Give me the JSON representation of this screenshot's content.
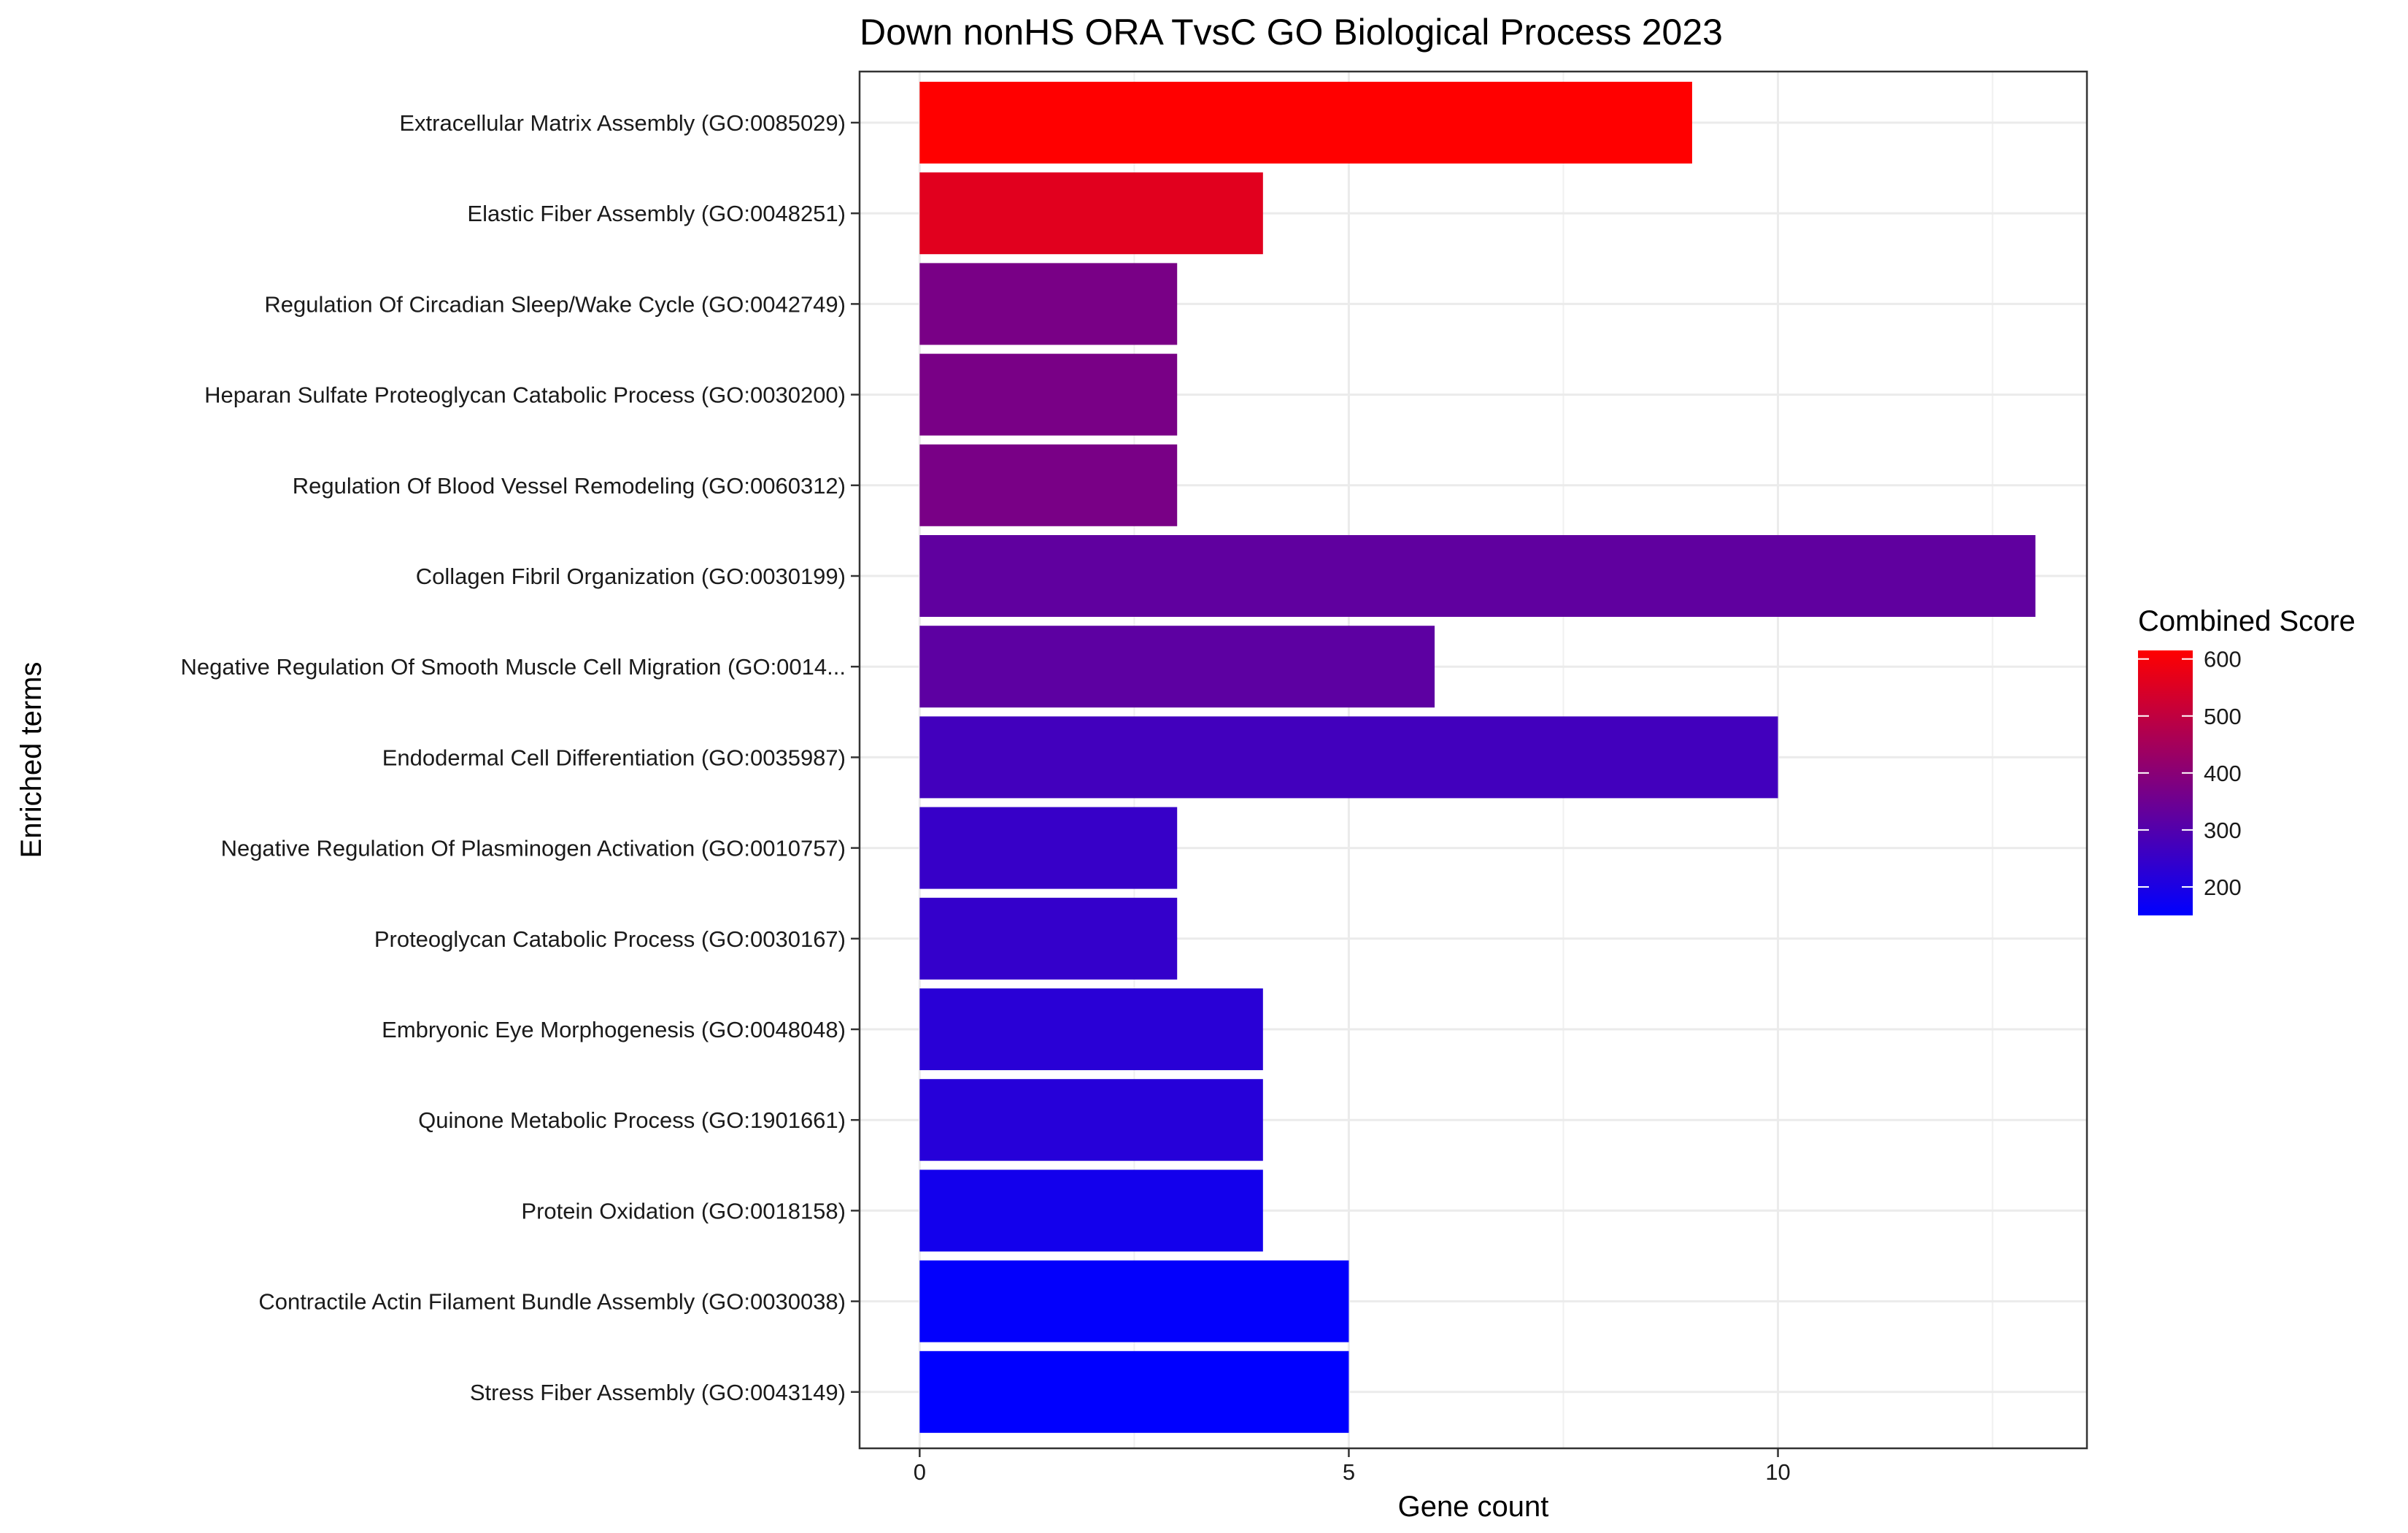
{
  "chart_data": {
    "type": "bar",
    "orientation": "horizontal",
    "title": "Down nonHS ORA TvsC GO Biological Process 2023",
    "xlabel": "Gene count",
    "ylabel": "Enriched terms",
    "xlim": [
      -0.7,
      13.6
    ],
    "xticks": [
      0,
      5,
      10
    ],
    "grid": true,
    "legend": {
      "title": "Combined Score",
      "position": "right",
      "ticks": [
        600,
        500,
        400,
        300,
        200
      ],
      "range": [
        150,
        615
      ],
      "low_color": "#0000ff",
      "high_color": "#ff0000"
    },
    "categories": [
      "Extracellular Matrix Assembly (GO:0085029)",
      "Elastic Fiber Assembly (GO:0048251)",
      "Regulation Of Circadian Sleep/Wake Cycle (GO:0042749)",
      "Heparan Sulfate Proteoglycan Catabolic Process (GO:0030200)",
      "Regulation Of Blood Vessel Remodeling (GO:0060312)",
      "Collagen Fibril Organization (GO:0030199)",
      "Negative Regulation Of Smooth Muscle Cell Migration (GO:0014...",
      "Endodermal Cell Differentiation (GO:0035987)",
      "Negative Regulation Of Plasminogen Activation (GO:0010757)",
      "Proteoglycan Catabolic Process (GO:0030167)",
      "Embryonic Eye Morphogenesis (GO:0048048)",
      "Quinone Metabolic Process (GO:1901661)",
      "Protein Oxidation (GO:0018158)",
      "Contractile Actin Filament Bundle Assembly (GO:0030038)",
      "Stress Fiber Assembly (GO:0043149)"
    ],
    "values": [
      9,
      4,
      3,
      3,
      3,
      13,
      6,
      10,
      3,
      3,
      4,
      4,
      4,
      5,
      5
    ],
    "combined_scores": [
      615,
      560,
      370,
      370,
      370,
      325,
      320,
      270,
      250,
      245,
      225,
      220,
      185,
      155,
      150
    ]
  }
}
